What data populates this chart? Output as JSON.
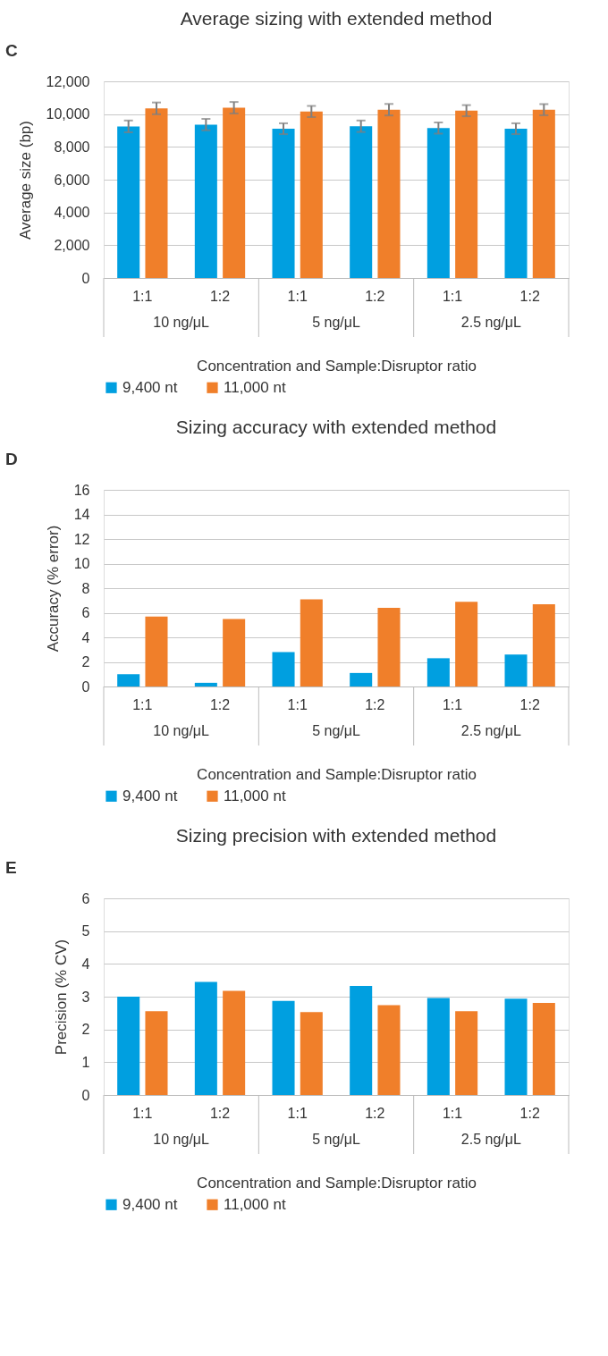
{
  "chart_data": [
    {
      "type": "bar",
      "title": "Average sizing with extended method",
      "ylabel": "Average size (bp)",
      "xlabel": "Concentration and Sample:Disruptor ratio",
      "categories": [
        "1:1",
        "1:2",
        "1:1",
        "1:2",
        "1:1",
        "1:2"
      ],
      "annotations": [
        "C",
        "10 ng/μL",
        "5 ng/μL",
        "2.5 ng/μL"
      ],
      "series": [
        {
          "name": "9,400 nt",
          "color": "#009fe0",
          "values": [
            9250,
            9360,
            9110,
            9260,
            9150,
            9110
          ],
          "errors": [
            360,
            350,
            330,
            350,
            340,
            330
          ]
        },
        {
          "name": "11,000 nt",
          "color": "#f07f2a",
          "values": [
            10350,
            10390,
            10160,
            10270,
            10210,
            10270
          ],
          "errors": [
            360,
            350,
            340,
            350,
            340,
            340
          ]
        }
      ],
      "ylim": [
        0,
        12000
      ],
      "yticks": [
        0,
        {
          "value": 2000,
          "label": "2,000"
        },
        {
          "value": 4000,
          "label": "4,000"
        },
        {
          "value": 6000,
          "label": "6,000"
        },
        {
          "value": 8000,
          "label": "8,000"
        },
        {
          "value": 10000,
          "label": "10,000"
        },
        {
          "value": 12000,
          "label": "12,000"
        }
      ],
      "grid": "y",
      "legend": "bottom"
    },
    {
      "type": "bar",
      "title": "Sizing accuracy with extended method",
      "ylabel": "Accuracy (% error)",
      "xlabel": "Concentration and Sample:Disruptor ratio",
      "categories": [
        "1:1",
        "1:2",
        "1:1",
        "1:2",
        "1:1",
        "1:2"
      ],
      "annotations": [
        "D",
        "10 ng/μL",
        "5 ng/μL",
        "2.5 ng/μL"
      ],
      "series": [
        {
          "name": "9,400 nt",
          "color": "#009fe0",
          "values": [
            1.0,
            0.3,
            2.8,
            1.1,
            2.3,
            2.6
          ]
        },
        {
          "name": "11,000 nt",
          "color": "#f07f2a",
          "values": [
            5.7,
            5.5,
            7.1,
            6.4,
            6.9,
            6.7
          ]
        }
      ],
      "ylim": [
        0,
        16
      ],
      "yticks": [
        0,
        2,
        4,
        6,
        8,
        10,
        12,
        14,
        16
      ],
      "grid": "y",
      "legend": "bottom"
    },
    {
      "type": "bar",
      "title": "Sizing precision with extended method",
      "ylabel": "Precision (% CV)",
      "xlabel": "Concentration and Sample:Disruptor ratio",
      "categories": [
        "1:1",
        "1:2",
        "1:1",
        "1:2",
        "1:1",
        "1:2"
      ],
      "annotations": [
        "E",
        "10 ng/μL",
        "5 ng/μL",
        "2.5 ng/μL"
      ],
      "series": [
        {
          "name": "9,400 nt",
          "color": "#009fe0",
          "values": [
            3.0,
            3.45,
            2.87,
            3.33,
            2.96,
            2.94
          ]
        },
        {
          "name": "11,000 nt",
          "color": "#f07f2a",
          "values": [
            2.56,
            3.18,
            2.53,
            2.74,
            2.56,
            2.81
          ]
        }
      ],
      "ylim": [
        0,
        6
      ],
      "yticks": [
        0,
        1,
        2,
        3,
        4,
        5,
        6
      ],
      "grid": "y",
      "legend": "bottom"
    }
  ]
}
